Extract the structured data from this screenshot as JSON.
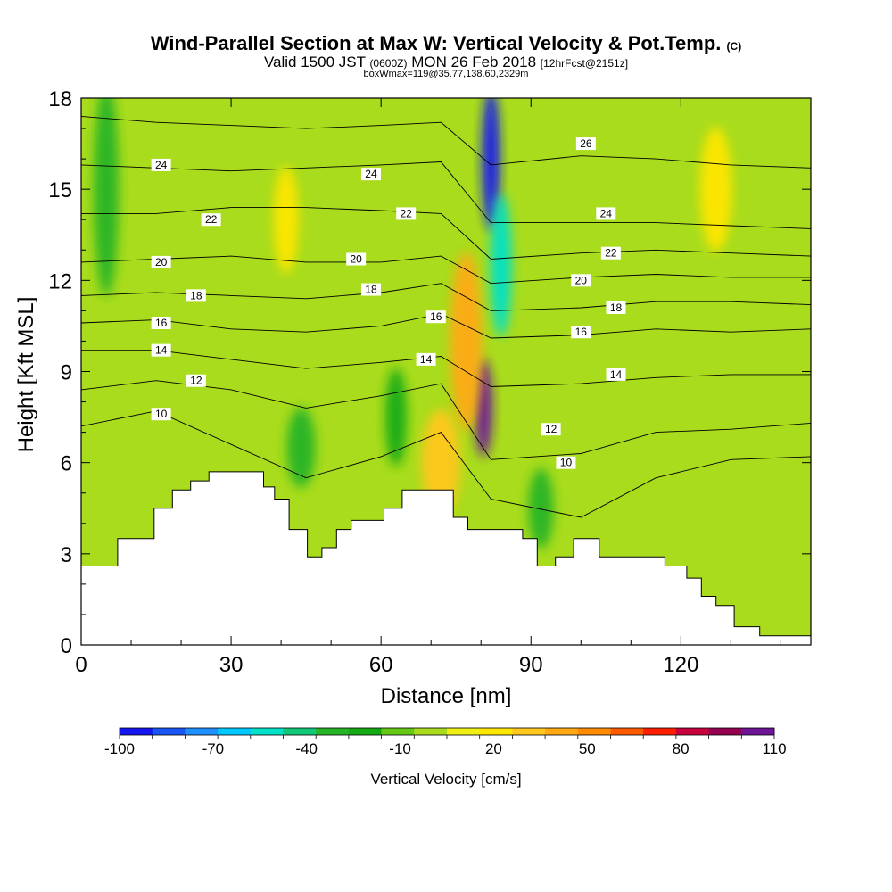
{
  "header": {
    "title_main": "Wind-Parallel Section at Max W: Vertical Velocity & Pot.Temp.",
    "title_suffix": "(C)",
    "valid_prefix": "Valid 1500 JST",
    "valid_utc": "(0600Z)",
    "valid_date": "MON 26 Feb 2018",
    "valid_fcst": "[12hrFcst@2151z]",
    "box_info": "boxWmax=119@35.77,138.60,2329m"
  },
  "chart_data": {
    "type": "heatmap",
    "xlabel": "Distance [nm]",
    "ylabel": "Height [Kft MSL]",
    "xlim": [
      0,
      146
    ],
    "ylim": [
      0,
      18
    ],
    "x_ticks": [
      "0",
      "30",
      "60",
      "90",
      "120"
    ],
    "x_tick_values": [
      0,
      30,
      60,
      90,
      120
    ],
    "y_ticks": [
      "0",
      "3",
      "6",
      "9",
      "12",
      "15",
      "18"
    ],
    "y_tick_values": [
      0,
      3,
      6,
      9,
      12,
      15,
      18
    ],
    "background_color": "#a8dc1c",
    "colorbar": {
      "label": "Vertical Velocity [cm/s]",
      "tick_labels": [
        "-100",
        "-70",
        "-40",
        "-10",
        "20",
        "50",
        "80",
        "110"
      ],
      "colors": [
        "#1414f0",
        "#1a55f5",
        "#1e90ff",
        "#00c8ff",
        "#00e1c8",
        "#10c878",
        "#28b428",
        "#14aa14",
        "#64c814",
        "#a8dc1c",
        "#f0f014",
        "#ffe600",
        "#ffc81e",
        "#ffaa14",
        "#ff8c00",
        "#ff5a00",
        "#ff1e00",
        "#c8003c",
        "#960050",
        "#6e1496"
      ]
    },
    "terrain": [
      [
        0,
        2.6
      ],
      [
        1,
        2.6
      ],
      [
        1,
        3.5
      ],
      [
        2,
        3.5
      ],
      [
        2,
        4.5
      ],
      [
        2.5,
        4.5
      ],
      [
        2.5,
        5.1
      ],
      [
        3,
        5.1
      ],
      [
        3,
        5.4
      ],
      [
        3.5,
        5.4
      ],
      [
        3.5,
        5.7
      ],
      [
        5,
        5.7
      ],
      [
        5,
        5.2
      ],
      [
        5.3,
        5.2
      ],
      [
        5.3,
        4.8
      ],
      [
        5.7,
        4.8
      ],
      [
        5.7,
        3.8
      ],
      [
        6.2,
        3.8
      ],
      [
        6.2,
        2.9
      ],
      [
        6.6,
        2.9
      ],
      [
        6.6,
        3.2
      ],
      [
        7,
        3.2
      ],
      [
        7,
        3.8
      ],
      [
        7.4,
        3.8
      ],
      [
        7.4,
        4.1
      ],
      [
        8.3,
        4.1
      ],
      [
        8.3,
        4.5
      ],
      [
        8.8,
        4.5
      ],
      [
        8.8,
        5.1
      ],
      [
        10.2,
        5.1
      ],
      [
        10.2,
        4.2
      ],
      [
        10.6,
        4.2
      ],
      [
        10.6,
        3.8
      ],
      [
        12.1,
        3.8
      ],
      [
        12.1,
        3.5
      ],
      [
        12.5,
        3.5
      ],
      [
        12.5,
        2.6
      ],
      [
        13,
        2.6
      ],
      [
        13,
        2.9
      ],
      [
        13.5,
        2.9
      ],
      [
        13.5,
        3.5
      ],
      [
        14.2,
        3.5
      ],
      [
        14.2,
        2.9
      ],
      [
        16,
        2.9
      ],
      [
        16,
        2.6
      ],
      [
        16.6,
        2.6
      ],
      [
        16.6,
        2.2
      ],
      [
        17,
        2.2
      ],
      [
        17,
        1.6
      ],
      [
        17.4,
        1.6
      ],
      [
        17.4,
        1.3
      ],
      [
        17.9,
        1.3
      ],
      [
        17.9,
        0.6
      ],
      [
        18.6,
        0.6
      ],
      [
        18.6,
        0.3
      ],
      [
        20,
        0.3
      ],
      [
        20,
        0
      ]
    ],
    "theta_contours": [
      {
        "label": "10",
        "y_kft": [
          7.2,
          7.7,
          6.6,
          5.5,
          6.2,
          7.0,
          4.8,
          4.2,
          5.5,
          6.1,
          6.2
        ]
      },
      {
        "label": "12",
        "y_kft": [
          8.4,
          8.7,
          8.4,
          7.8,
          8.2,
          8.6,
          6.1,
          6.3,
          7.0,
          7.1,
          7.3
        ]
      },
      {
        "label": "14",
        "y_kft": [
          9.7,
          9.7,
          9.4,
          9.1,
          9.3,
          9.5,
          8.5,
          8.6,
          8.8,
          8.9,
          8.9
        ]
      },
      {
        "label": "16",
        "y_kft": [
          10.6,
          10.7,
          10.4,
          10.3,
          10.5,
          10.9,
          10.1,
          10.2,
          10.4,
          10.3,
          10.4
        ]
      },
      {
        "label": "18",
        "y_kft": [
          11.5,
          11.6,
          11.5,
          11.4,
          11.6,
          11.9,
          11.0,
          11.1,
          11.3,
          11.3,
          11.2
        ]
      },
      {
        "label": "20",
        "y_kft": [
          12.6,
          12.7,
          12.8,
          12.6,
          12.6,
          12.8,
          11.9,
          12.1,
          12.2,
          12.1,
          12.1
        ]
      },
      {
        "label": "22",
        "y_kft": [
          14.2,
          14.2,
          14.4,
          14.4,
          14.3,
          14.2,
          12.7,
          12.9,
          13.0,
          12.9,
          12.8
        ]
      },
      {
        "label": "24",
        "y_kft": [
          15.8,
          15.7,
          15.6,
          15.7,
          15.8,
          15.9,
          13.9,
          13.9,
          13.9,
          13.8,
          13.7
        ]
      },
      {
        "label": "26",
        "y_kft": [
          17.4,
          17.2,
          17.1,
          17.0,
          17.1,
          17.2,
          15.8,
          16.1,
          16.0,
          15.8,
          15.7
        ]
      }
    ],
    "contour_x_nm": [
      0,
      15,
      30,
      45,
      60,
      72,
      82,
      100,
      115,
      130,
      146
    ],
    "contour_labels": [
      {
        "text": "24",
        "x_nm": 16,
        "y_kft": 15.8
      },
      {
        "text": "22",
        "x_nm": 26,
        "y_kft": 14.0
      },
      {
        "text": "20",
        "x_nm": 16,
        "y_kft": 12.6
      },
      {
        "text": "18",
        "x_nm": 23,
        "y_kft": 11.5
      },
      {
        "text": "16",
        "x_nm": 16,
        "y_kft": 10.6
      },
      {
        "text": "14",
        "x_nm": 16,
        "y_kft": 9.7
      },
      {
        "text": "12",
        "x_nm": 23,
        "y_kft": 8.7
      },
      {
        "text": "10",
        "x_nm": 16,
        "y_kft": 7.6
      },
      {
        "text": "24",
        "x_nm": 58,
        "y_kft": 15.5
      },
      {
        "text": "22",
        "x_nm": 65,
        "y_kft": 14.2
      },
      {
        "text": "20",
        "x_nm": 55,
        "y_kft": 12.7
      },
      {
        "text": "18",
        "x_nm": 58,
        "y_kft": 11.7
      },
      {
        "text": "16",
        "x_nm": 71,
        "y_kft": 10.8
      },
      {
        "text": "14",
        "x_nm": 69,
        "y_kft": 9.4
      },
      {
        "text": "26",
        "x_nm": 101,
        "y_kft": 16.5
      },
      {
        "text": "24",
        "x_nm": 105,
        "y_kft": 14.2
      },
      {
        "text": "22",
        "x_nm": 106,
        "y_kft": 12.9
      },
      {
        "text": "20",
        "x_nm": 100,
        "y_kft": 12.0
      },
      {
        "text": "18",
        "x_nm": 107,
        "y_kft": 11.1
      },
      {
        "text": "16",
        "x_nm": 100,
        "y_kft": 10.3
      },
      {
        "text": "14",
        "x_nm": 107,
        "y_kft": 8.9
      },
      {
        "text": "12",
        "x_nm": 94,
        "y_kft": 7.1
      },
      {
        "text": "10",
        "x_nm": 97,
        "y_kft": 6.0
      }
    ],
    "velocity_features": [
      {
        "name": "strong updraft core",
        "x_nm": 80.5,
        "y_kft": 7.8,
        "w_cms": 110
      },
      {
        "name": "updraft column",
        "x_nm": 77,
        "y_kft": 10,
        "w_cms": 40
      },
      {
        "name": "lower updraft",
        "x_nm": 72,
        "y_kft": 6,
        "w_cms": 25
      },
      {
        "name": "upper downdraft",
        "x_nm": 82,
        "y_kft": 16,
        "w_cms": -100
      },
      {
        "name": "downdraft column",
        "x_nm": 84,
        "y_kft": 12.5,
        "w_cms": -60
      },
      {
        "name": "left band downdraft",
        "x_nm": 5,
        "y_kft": 15,
        "w_cms": -40
      },
      {
        "name": "mid downdraft",
        "x_nm": 44,
        "y_kft": 6.5,
        "w_cms": -35
      },
      {
        "name": "mid downdraft 2",
        "x_nm": 63,
        "y_kft": 7.5,
        "w_cms": -30
      },
      {
        "name": "right downdraft",
        "x_nm": 92,
        "y_kft": 4.5,
        "w_cms": -35
      },
      {
        "name": "right upper updraft",
        "x_nm": 127,
        "y_kft": 15,
        "w_cms": 20
      },
      {
        "name": "left upper updraft",
        "x_nm": 41,
        "y_kft": 14,
        "w_cms": 20
      }
    ]
  }
}
